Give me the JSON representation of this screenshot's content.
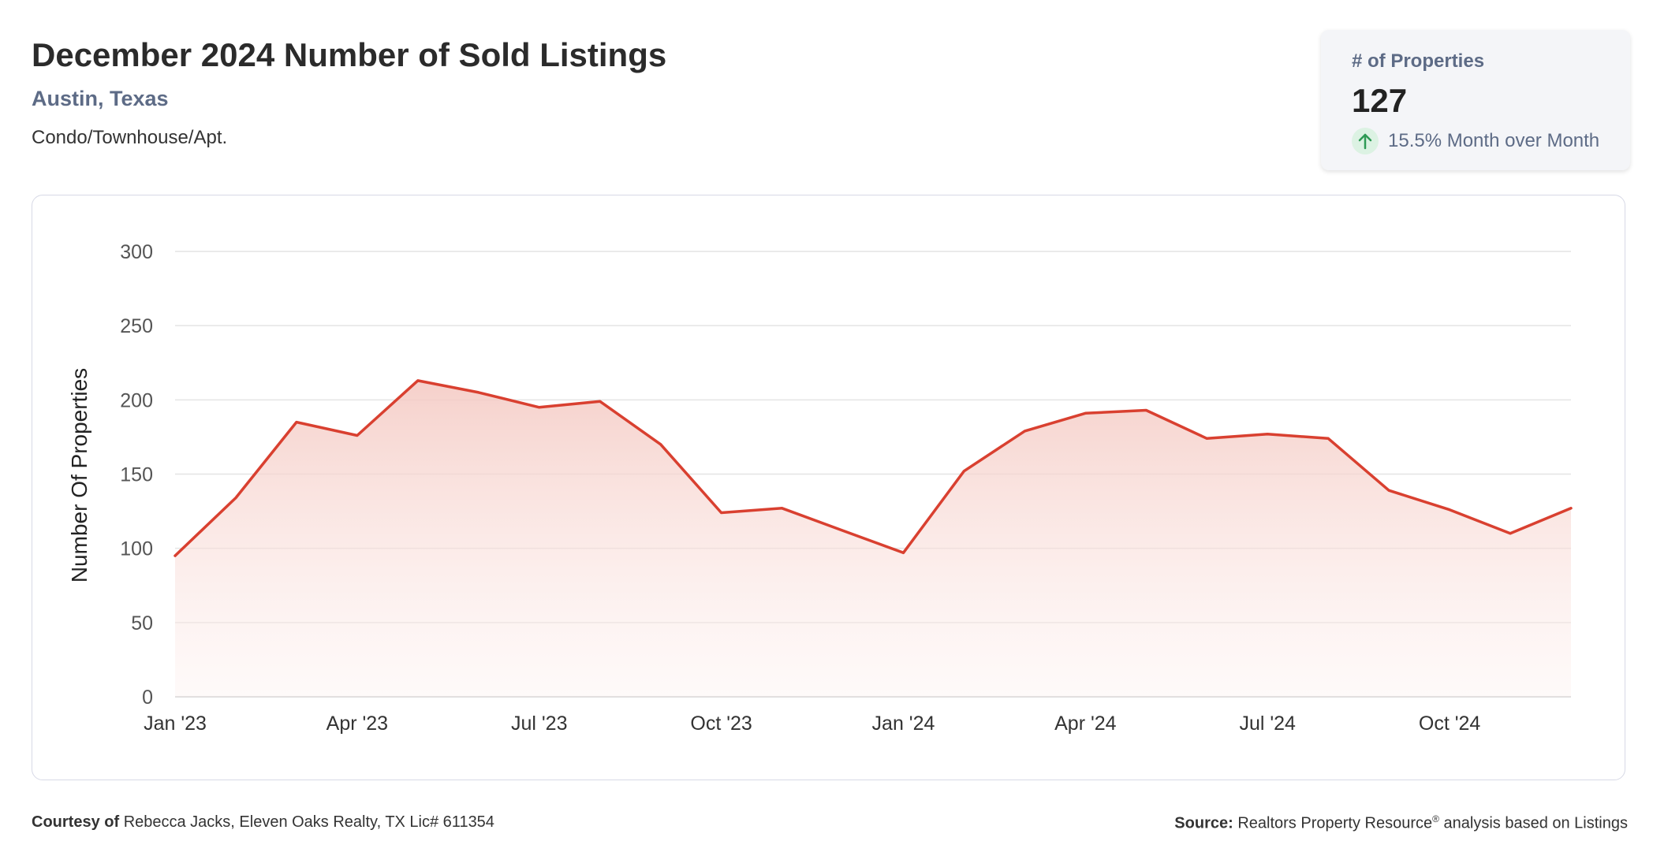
{
  "header": {
    "title": "December 2024 Number of Sold Listings",
    "location": "Austin, Texas",
    "category": "Condo/Townhouse/Apt."
  },
  "kpi": {
    "label": "# of Properties",
    "value": "127",
    "change": "15.5% Month over Month",
    "arrow_icon": "arrow-up-icon",
    "arrow_color": "#2e9a55",
    "arrow_bg": "#dcf2e3"
  },
  "chart_data": {
    "type": "area",
    "ylabel": "Number Of Properties",
    "ylim": [
      0,
      300
    ],
    "yticks": [
      0,
      50,
      100,
      150,
      200,
      250,
      300
    ],
    "xticks": [
      "Jan '23",
      "Apr '23",
      "Jul '23",
      "Oct '23",
      "Jan '24",
      "Apr '24",
      "Jul '24",
      "Oct '24"
    ],
    "x": [
      "2023-01",
      "2023-02",
      "2023-03",
      "2023-04",
      "2023-05",
      "2023-06",
      "2023-07",
      "2023-08",
      "2023-09",
      "2023-10",
      "2023-11",
      "2023-12",
      "2024-01",
      "2024-02",
      "2024-03",
      "2024-04",
      "2024-05",
      "2024-06",
      "2024-07",
      "2024-08",
      "2024-09",
      "2024-10",
      "2024-11",
      "2024-12"
    ],
    "series": [
      {
        "values": [
          95,
          134,
          185,
          176,
          213,
          205,
          195,
          199,
          170,
          124,
          127,
          112,
          97,
          152,
          179,
          191,
          193,
          174,
          177,
          174,
          139,
          126,
          110,
          127
        ],
        "color": "#d94030"
      }
    ],
    "grid": true,
    "legend": "none"
  },
  "footer": {
    "courtesy_label": "Courtesy of",
    "courtesy_text": "Rebecca Jacks, Eleven Oaks Realty, TX Lic# 611354",
    "source_label": "Source:",
    "source_text": "Realtors Property Resource",
    "source_reg": "®",
    "source_suffix": "analysis based on Listings"
  }
}
